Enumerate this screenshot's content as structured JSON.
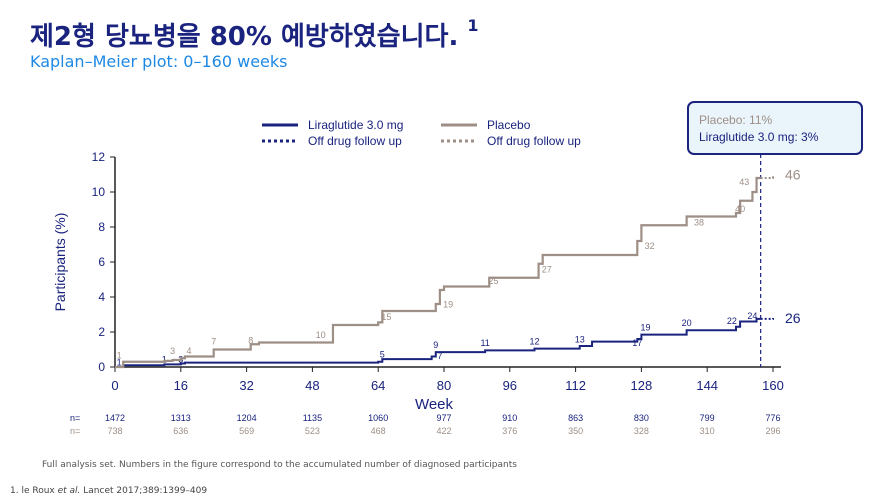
{
  "header": {
    "title": "제2형 당뇨병을 80% 예방하였습니다.",
    "title_sup": "1",
    "subtitle": "Kaplan–Meier plot: 0–160 weeks"
  },
  "callout": {
    "line1": "Placebo: 11%",
    "line2": "Liraglutide 3.0 mg: 3%"
  },
  "footer": {
    "note": "Full analysis set. Numbers in the figure correspond to the accumulated number of diagnosed participants",
    "ref_prefix": "1. le Roux ",
    "ref_etal": "et al.",
    "ref_journal": " Lancet",
    "ref_rest": " 2017;389:1399–409"
  },
  "colors": {
    "liraglutide": "#1a237e",
    "placebo": "#9e8f86",
    "title": "#1a237e",
    "subtitle": "#1e88e5"
  },
  "chart_data": {
    "type": "line",
    "xlabel": "Week",
    "ylabel": "Participants (%)",
    "xlim": [
      0,
      160
    ],
    "ylim": [
      0,
      12
    ],
    "xticks": [
      0,
      16,
      32,
      48,
      64,
      80,
      96,
      112,
      128,
      144,
      160
    ],
    "yticks": [
      0,
      2,
      4,
      6,
      8,
      10,
      12
    ],
    "legend": [
      {
        "label": "Liraglutide 3.0 mg",
        "series": "liraglutide",
        "style": "solid"
      },
      {
        "label": "Placebo",
        "series": "placebo",
        "style": "solid"
      },
      {
        "label": "Off drug follow up",
        "series": "liraglutide",
        "style": "dotted"
      },
      {
        "label": "Off drug follow up",
        "series": "placebo",
        "style": "dotted"
      }
    ],
    "series": [
      {
        "key": "liraglutide",
        "name": "Liraglutide 3.0 mg",
        "steps": [
          [
            0,
            0
          ],
          [
            2,
            0.1
          ],
          [
            12,
            0.15
          ],
          [
            16,
            0.2
          ],
          [
            17,
            0.25
          ],
          [
            64,
            0.3
          ],
          [
            65,
            0.45
          ],
          [
            77,
            0.6
          ],
          [
            78,
            0.85
          ],
          [
            90,
            0.95
          ],
          [
            102,
            1.05
          ],
          [
            113,
            1.2
          ],
          [
            116,
            1.45
          ],
          [
            127,
            1.6
          ],
          [
            128,
            1.85
          ],
          [
            139,
            2.1
          ],
          [
            151,
            2.3
          ],
          [
            152,
            2.6
          ],
          [
            156,
            2.75
          ]
        ],
        "end_x": 157,
        "offdrug_steps": [
          [
            157,
            2.75
          ],
          [
            160,
            2.8
          ]
        ],
        "end_label": "26",
        "data_labels": [
          {
            "x": 1,
            "y": 0.1,
            "text": "1"
          },
          {
            "x": 12,
            "y": 0.25,
            "text": "1"
          },
          {
            "x": 16,
            "y": 0.25,
            "text": "3"
          },
          {
            "x": 65,
            "y": 0.55,
            "text": "5"
          },
          {
            "x": 79,
            "y": 0.45,
            "text": "7"
          },
          {
            "x": 78,
            "y": 1.1,
            "text": "9"
          },
          {
            "x": 90,
            "y": 1.2,
            "text": "11"
          },
          {
            "x": 102,
            "y": 1.3,
            "text": "12"
          },
          {
            "x": 113,
            "y": 1.4,
            "text": "13"
          },
          {
            "x": 127,
            "y": 1.2,
            "text": "17"
          },
          {
            "x": 129,
            "y": 2.1,
            "text": "19"
          },
          {
            "x": 139,
            "y": 2.35,
            "text": "20"
          },
          {
            "x": 150,
            "y": 2.45,
            "text": "22"
          },
          {
            "x": 155,
            "y": 2.75,
            "text": "24"
          }
        ]
      },
      {
        "key": "placebo",
        "name": "Placebo",
        "steps": [
          [
            0,
            0
          ],
          [
            2,
            0.3
          ],
          [
            12,
            0.35
          ],
          [
            14,
            0.4
          ],
          [
            16,
            0.5
          ],
          [
            17,
            0.6
          ],
          [
            24,
            1.0
          ],
          [
            33,
            1.3
          ],
          [
            35,
            1.4
          ],
          [
            53,
            2.4
          ],
          [
            64,
            2.55
          ],
          [
            65,
            3.2
          ],
          [
            78,
            3.6
          ],
          [
            79,
            4.4
          ],
          [
            80,
            4.6
          ],
          [
            91,
            5.1
          ],
          [
            103,
            5.9
          ],
          [
            104,
            6.4
          ],
          [
            127,
            7.2
          ],
          [
            128,
            8.1
          ],
          [
            139,
            8.6
          ],
          [
            151,
            8.8
          ],
          [
            152,
            9.5
          ],
          [
            155,
            10.0
          ],
          [
            156,
            10.8
          ]
        ],
        "end_x": 157,
        "offdrug_steps": [
          [
            157,
            10.8
          ],
          [
            160,
            11.0
          ]
        ],
        "end_label": "46",
        "data_labels": [
          {
            "x": 1,
            "y": 0.5,
            "text": "1"
          },
          {
            "x": 14,
            "y": 0.75,
            "text": "3"
          },
          {
            "x": 18,
            "y": 0.75,
            "text": "4"
          },
          {
            "x": 24,
            "y": 1.3,
            "text": "7"
          },
          {
            "x": 33,
            "y": 1.35,
            "text": "8"
          },
          {
            "x": 50,
            "y": 1.65,
            "text": "10"
          },
          {
            "x": 66,
            "y": 2.7,
            "text": "15"
          },
          {
            "x": 81,
            "y": 3.4,
            "text": "19"
          },
          {
            "x": 92,
            "y": 4.75,
            "text": "25"
          },
          {
            "x": 105,
            "y": 5.4,
            "text": "27"
          },
          {
            "x": 130,
            "y": 6.75,
            "text": "32"
          },
          {
            "x": 142,
            "y": 8.1,
            "text": "38"
          },
          {
            "x": 152,
            "y": 8.85,
            "text": "40"
          },
          {
            "x": 153,
            "y": 10.4,
            "text": "43"
          }
        ]
      }
    ],
    "at_risk": {
      "labels": [
        "n=",
        "n="
      ],
      "x": [
        0,
        16,
        32,
        48,
        64,
        80,
        96,
        112,
        128,
        144,
        160
      ],
      "liraglutide": [
        "1472",
        "1313",
        "1204",
        "1135",
        "1060",
        "977",
        "910",
        "863",
        "830",
        "799",
        "776"
      ],
      "placebo": [
        "738",
        "636",
        "569",
        "523",
        "468",
        "422",
        "376",
        "350",
        "328",
        "310",
        "296"
      ]
    }
  }
}
